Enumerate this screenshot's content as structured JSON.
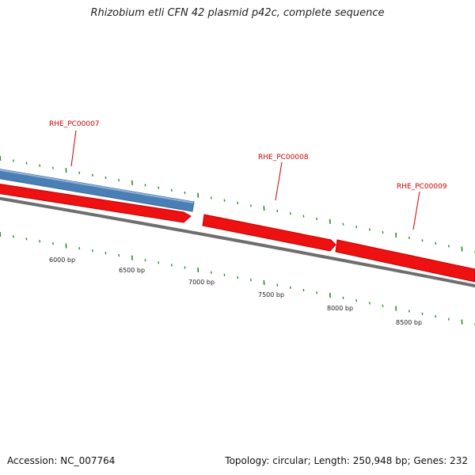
{
  "title": "Rhizobium etli CFN 42 plasmid p42c, complete sequence",
  "footer": {
    "accession": "Accession: NC_007764",
    "stats": "Topology: circular; Length: 250,948 bp; Genes: 232"
  },
  "colors": {
    "gene_forward": "#ee1111",
    "gene_reverse": "#4a7fb5",
    "backbone": "#808080",
    "tick": "#2a8a2a",
    "label": "#cc0000"
  },
  "genes": [
    {
      "name": "RHE_PC00007",
      "strand": "reverse",
      "start_bp": 5600,
      "end_bp": 7030
    },
    {
      "name": "RHE_PC00008",
      "strand": "forward",
      "start_bp": 7000,
      "end_bp": 8000
    },
    {
      "name": "RHE_PC00009",
      "strand": "forward",
      "start_bp": 8020,
      "end_bp": 9000
    }
  ],
  "bp_labels": [
    "6000 bp",
    "6500 bp",
    "7000 bp",
    "7500 bp",
    "8000 bp",
    "8500 bp"
  ]
}
